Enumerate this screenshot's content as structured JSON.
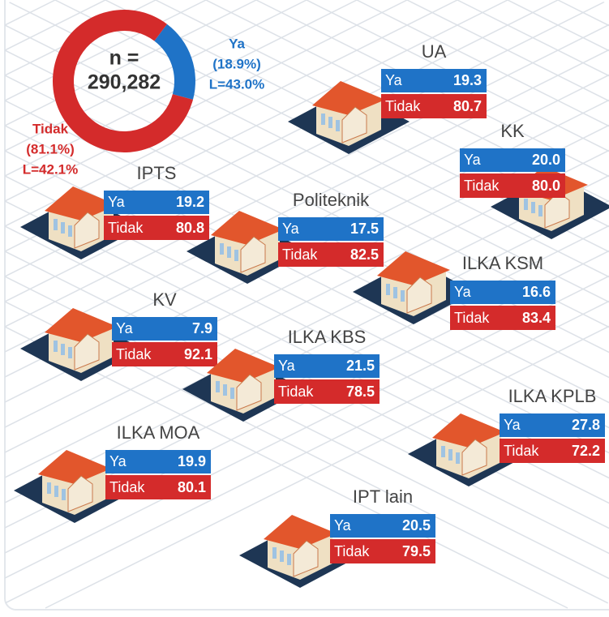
{
  "chart_data": {
    "type": "pie",
    "center_label": [
      "n =",
      "290,282"
    ],
    "categories": [
      "Ya",
      "Tidak"
    ],
    "values": [
      18.9,
      81.1
    ],
    "value_labels": [
      "(18.9%)",
      "(81.1%)"
    ],
    "annotations": [
      "L=43.0%",
      "L=42.1%"
    ],
    "colors": [
      "#1f73c7",
      "#d42b2b"
    ]
  },
  "institutions": [
    {
      "name": "UA",
      "ya_label": "Ya",
      "ya": "19.3",
      "tidak_label": "Tidak",
      "tidak": "80.7"
    },
    {
      "name": "KK",
      "ya_label": "Ya",
      "ya": "20.0",
      "tidak_label": "Tidak",
      "tidak": "80.0"
    },
    {
      "name": "IPTS",
      "ya_label": "Ya",
      "ya": "19.2",
      "tidak_label": "Tidak",
      "tidak": "80.8"
    },
    {
      "name": "Politeknik",
      "ya_label": "Ya",
      "ya": "17.5",
      "tidak_label": "Tidak",
      "tidak": "82.5"
    },
    {
      "name": "ILKA KSM",
      "ya_label": "Ya",
      "ya": "16.6",
      "tidak_label": "Tidak",
      "tidak": "83.4"
    },
    {
      "name": "KV",
      "ya_label": "Ya",
      "ya": "7.9",
      "tidak_label": "Tidak",
      "tidak": "92.1"
    },
    {
      "name": "ILKA KBS",
      "ya_label": "Ya",
      "ya": "21.5",
      "tidak_label": "Tidak",
      "tidak": "78.5"
    },
    {
      "name": "ILKA KPLB",
      "ya_label": "Ya",
      "ya": "27.8",
      "tidak_label": "Tidak",
      "tidak": "72.2"
    },
    {
      "name": "ILKA MOA",
      "ya_label": "Ya",
      "ya": "19.9",
      "tidak_label": "Tidak",
      "tidak": "80.1"
    },
    {
      "name": "IPT lain",
      "ya_label": "Ya",
      "ya": "20.5",
      "tidak_label": "Tidak",
      "tidak": "79.5"
    }
  ]
}
